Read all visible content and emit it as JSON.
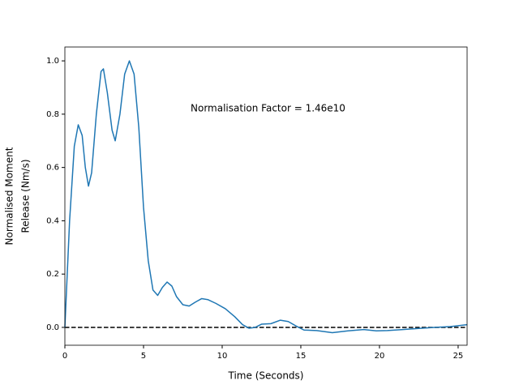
{
  "chart_data": {
    "type": "line",
    "xlabel": "Time (Seconds)",
    "ylabel": [
      "Normalised Moment",
      "Release (Nm/s)"
    ],
    "annotation": "Normalisation Factor = 1.46e10",
    "hline": 0,
    "xlim": [
      0,
      25.57
    ],
    "ylim": [
      -0.067,
      1.052
    ],
    "xticks": [
      0,
      5,
      10,
      15,
      20,
      25
    ],
    "yticks": [
      {
        "value": 0,
        "label": "0.0"
      },
      {
        "value": 0.2,
        "label": "0.2"
      },
      {
        "value": 0.4,
        "label": "0.4"
      },
      {
        "value": 0.6,
        "label": "0.6"
      },
      {
        "value": 0.8,
        "label": "0.8"
      },
      {
        "value": 1.0,
        "label": "1.0"
      }
    ],
    "series": [
      {
        "color": "#1f77b4",
        "x": [
          0,
          0.3,
          0.6,
          0.85,
          1.1,
          1.3,
          1.5,
          1.7,
          2.0,
          2.3,
          2.45,
          2.7,
          3.0,
          3.2,
          3.5,
          3.8,
          4.1,
          4.4,
          4.7,
          5.0,
          5.3,
          5.6,
          5.9,
          6.2,
          6.5,
          6.8,
          7.1,
          7.5,
          7.9,
          8.3,
          8.7,
          9.1,
          9.6,
          10.2,
          10.8,
          11.3,
          11.7,
          12.1,
          12.5,
          13.1,
          13.7,
          14.2,
          14.7,
          15.2,
          16.0,
          17.0,
          18.0,
          19.0,
          19.8,
          20.5,
          21.5,
          22.5,
          23.5,
          24.5,
          25.57
        ],
        "values": [
          0,
          0.4,
          0.68,
          0.76,
          0.72,
          0.6,
          0.53,
          0.58,
          0.8,
          0.96,
          0.97,
          0.88,
          0.74,
          0.7,
          0.8,
          0.95,
          1.0,
          0.95,
          0.75,
          0.45,
          0.25,
          0.14,
          0.12,
          0.15,
          0.17,
          0.155,
          0.115,
          0.085,
          0.08,
          0.095,
          0.108,
          0.104,
          0.09,
          0.07,
          0.04,
          0.01,
          -0.003,
          0.0,
          0.012,
          0.014,
          0.027,
          0.022,
          0.005,
          -0.01,
          -0.012,
          -0.02,
          -0.013,
          -0.008,
          -0.013,
          -0.012,
          -0.008,
          -0.004,
          0.0,
          0.003,
          0.01
        ]
      }
    ]
  }
}
